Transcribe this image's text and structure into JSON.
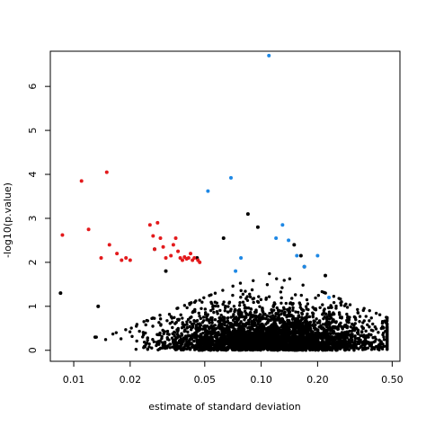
{
  "chart_data": {
    "type": "scatter",
    "title": "",
    "xlabel": "estimate of standard deviation",
    "ylabel": "-log10(p.value)",
    "x_scale": "log",
    "xlim": [
      0.0075,
      0.55
    ],
    "ylim": [
      -0.25,
      6.8
    ],
    "x_ticks": [
      {
        "value": 0.01,
        "label": "0.01"
      },
      {
        "value": 0.02,
        "label": "0.02"
      },
      {
        "value": 0.05,
        "label": "0.05"
      },
      {
        "value": 0.1,
        "label": "0.10"
      },
      {
        "value": 0.2,
        "label": "0.20"
      },
      {
        "value": 0.5,
        "label": "0.50"
      }
    ],
    "y_ticks": [
      {
        "value": 0,
        "label": "0"
      },
      {
        "value": 1,
        "label": "1"
      },
      {
        "value": 2,
        "label": "2"
      },
      {
        "value": 3,
        "label": "3"
      },
      {
        "value": 4,
        "label": "4"
      },
      {
        "value": 5,
        "label": "5"
      },
      {
        "value": 6,
        "label": "6"
      }
    ],
    "grid": false,
    "legend": "none",
    "colors": {
      "black": "#000000",
      "red": "#e31a1c",
      "blue": "#1e88e5"
    },
    "series": [
      {
        "color": "black",
        "x": [
          0.0085,
          0.0135,
          0.027,
          0.031,
          0.0455,
          0.063,
          0.085,
          0.096,
          0.15,
          0.163,
          0.17,
          0.22,
          0.35
        ],
        "y": [
          1.3,
          1.0,
          2.3,
          1.8,
          2.1,
          2.55,
          3.1,
          2.8,
          2.4,
          2.15,
          1.9,
          1.7,
          0.5
        ]
      },
      {
        "color": "red",
        "x": [
          0.0087,
          0.011,
          0.012,
          0.014,
          0.015,
          0.0155,
          0.017,
          0.018,
          0.019,
          0.02,
          0.0255,
          0.0265,
          0.027,
          0.028,
          0.029,
          0.03,
          0.031,
          0.033,
          0.034,
          0.035,
          0.036,
          0.037,
          0.038,
          0.039,
          0.04,
          0.041,
          0.042,
          0.043,
          0.044,
          0.046,
          0.047
        ],
        "y": [
          2.62,
          3.85,
          2.75,
          2.1,
          4.05,
          2.4,
          2.2,
          2.05,
          2.1,
          2.05,
          2.85,
          2.6,
          2.3,
          2.9,
          2.55,
          2.35,
          2.1,
          2.15,
          2.4,
          2.55,
          2.25,
          2.1,
          2.05,
          2.12,
          2.08,
          2.1,
          2.2,
          2.05,
          2.1,
          2.05,
          2.0
        ]
      },
      {
        "color": "blue",
        "x": [
          0.052,
          0.069,
          0.073,
          0.078,
          0.11,
          0.12,
          0.13,
          0.14,
          0.155,
          0.17,
          0.2,
          0.23
        ],
        "y": [
          3.62,
          3.92,
          1.8,
          2.1,
          6.7,
          2.55,
          2.85,
          2.5,
          2.15,
          1.9,
          2.15,
          1.2
        ]
      }
    ],
    "dense_cloud": {
      "description_count": 3500,
      "color": "black"
    }
  }
}
